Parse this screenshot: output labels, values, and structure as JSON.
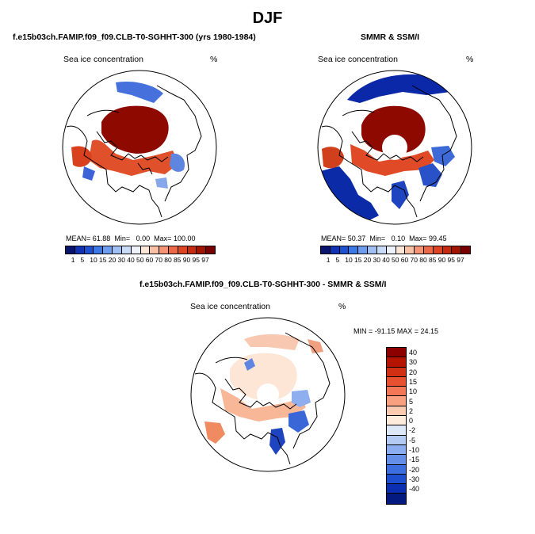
{
  "page": {
    "title": "DJF"
  },
  "panels": {
    "left": {
      "case_title": "f.e15b03ch.FAMIP.f09_f09.CLB-T0-SGHHT-300 (yrs 1980-1984)",
      "label": "Sea ice concentration",
      "unit": "%",
      "mean_label": "MEAN=",
      "mean": "61.88",
      "min_label": "Min=",
      "min": "0.00",
      "max_label": "Max=",
      "max": "100.00"
    },
    "right": {
      "case_title": "SMMR & SSM/I",
      "label": "Sea ice concentration",
      "unit": "%",
      "mean_label": "MEAN=",
      "mean": "50.37",
      "min_label": "Min=",
      "min": "0.10",
      "max_label": "Max=",
      "max": "99.45"
    },
    "diff": {
      "case_title": "f.e15b03ch.FAMIP.f09_f09.CLB-T0-SGHHT-300 - SMMR & SSM/I",
      "label": "Sea ice concentration",
      "unit": "%",
      "stats": "MIN = -91.15 MAX =  24.15"
    }
  },
  "colorbar_top": {
    "labels": [
      "1",
      "5",
      "10",
      "15",
      "20",
      "30",
      "40",
      "50",
      "60",
      "70",
      "80",
      "85",
      "90",
      "95",
      "97"
    ],
    "colors": [
      "#08146e",
      "#1232b4",
      "#1e50d2",
      "#3c78e6",
      "#6e9cee",
      "#a0c0f4",
      "#c8dcf8",
      "#eef2fa",
      "#fce6d8",
      "#f8c0a4",
      "#f49474",
      "#ec6846",
      "#dc4424",
      "#c82a10",
      "#a01400",
      "#780000"
    ]
  },
  "colorbar_diff": {
    "labels": [
      "40",
      "30",
      "20",
      "15",
      "10",
      "5",
      "2",
      "0",
      "-2",
      "-5",
      "-10",
      "-15",
      "-20",
      "-30",
      "-40"
    ],
    "colors": [
      "#8c0000",
      "#b41400",
      "#d23014",
      "#e85030",
      "#f47858",
      "#f8a080",
      "#fccab0",
      "#fdebdc",
      "#dce8f8",
      "#b4ccf4",
      "#8caef0",
      "#648ee8",
      "#3c6ee0",
      "#1e4ed0",
      "#0c2eb0",
      "#051a80"
    ]
  }
}
